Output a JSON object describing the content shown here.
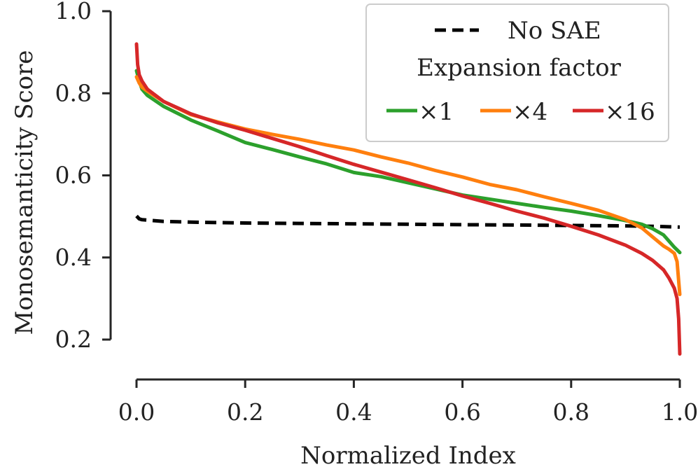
{
  "chart_data": {
    "type": "line",
    "title": "",
    "xlabel": "Normalized Index",
    "ylabel": "Monosemanticity Score",
    "xlim": [
      0.0,
      1.0
    ],
    "ylim": [
      0.2,
      1.0
    ],
    "x_ticks": [
      "0.0",
      "0.2",
      "0.4",
      "0.6",
      "0.8",
      "1.0"
    ],
    "y_ticks": [
      "0.2",
      "0.4",
      "0.6",
      "0.8",
      "1.0"
    ],
    "grid": false,
    "legend": {
      "placement": "top-right",
      "baseline_label": "No SAE",
      "subtitle": "Expansion factor"
    },
    "series": [
      {
        "name": "No SAE",
        "legend_label": "No SAE",
        "color": "#000000",
        "style": "dashed",
        "x": [
          0.0,
          0.005,
          0.01,
          0.05,
          0.1,
          0.2,
          0.3,
          0.4,
          0.5,
          0.6,
          0.7,
          0.8,
          0.9,
          0.95,
          1.0
        ],
        "y": [
          0.501,
          0.494,
          0.492,
          0.488,
          0.486,
          0.484,
          0.483,
          0.482,
          0.481,
          0.48,
          0.479,
          0.478,
          0.477,
          0.476,
          0.474
        ]
      },
      {
        "name": "×1",
        "legend_label": "×1",
        "color": "#2ca02c",
        "style": "solid",
        "x": [
          0.0,
          0.005,
          0.01,
          0.02,
          0.05,
          0.1,
          0.15,
          0.2,
          0.25,
          0.3,
          0.35,
          0.4,
          0.45,
          0.5,
          0.55,
          0.6,
          0.65,
          0.7,
          0.75,
          0.8,
          0.85,
          0.9,
          0.93,
          0.95,
          0.97,
          0.98,
          0.99,
          1.0
        ],
        "y": [
          0.855,
          0.83,
          0.81,
          0.795,
          0.768,
          0.735,
          0.708,
          0.68,
          0.663,
          0.645,
          0.628,
          0.607,
          0.597,
          0.582,
          0.567,
          0.552,
          0.542,
          0.532,
          0.522,
          0.513,
          0.502,
          0.49,
          0.481,
          0.47,
          0.455,
          0.44,
          0.425,
          0.412
        ]
      },
      {
        "name": "×4",
        "legend_label": "×4",
        "color": "#ff7f0e",
        "style": "solid",
        "x": [
          0.0,
          0.005,
          0.01,
          0.02,
          0.05,
          0.1,
          0.15,
          0.2,
          0.25,
          0.3,
          0.35,
          0.4,
          0.45,
          0.5,
          0.55,
          0.6,
          0.65,
          0.7,
          0.75,
          0.8,
          0.85,
          0.9,
          0.93,
          0.95,
          0.97,
          0.98,
          0.99,
          0.995,
          1.0
        ],
        "y": [
          0.84,
          0.825,
          0.815,
          0.805,
          0.78,
          0.748,
          0.73,
          0.713,
          0.7,
          0.688,
          0.674,
          0.662,
          0.645,
          0.63,
          0.612,
          0.596,
          0.578,
          0.565,
          0.548,
          0.532,
          0.515,
          0.492,
          0.472,
          0.45,
          0.428,
          0.42,
          0.41,
          0.39,
          0.31
        ]
      },
      {
        "name": "×16",
        "legend_label": "×16",
        "color": "#d62728",
        "style": "solid",
        "x": [
          0.0,
          0.002,
          0.005,
          0.01,
          0.02,
          0.05,
          0.1,
          0.15,
          0.2,
          0.25,
          0.3,
          0.35,
          0.4,
          0.45,
          0.5,
          0.55,
          0.6,
          0.65,
          0.7,
          0.75,
          0.8,
          0.85,
          0.9,
          0.93,
          0.95,
          0.97,
          0.98,
          0.99,
          0.995,
          0.998,
          1.0
        ],
        "y": [
          0.92,
          0.87,
          0.845,
          0.83,
          0.81,
          0.78,
          0.75,
          0.728,
          0.71,
          0.69,
          0.67,
          0.648,
          0.627,
          0.608,
          0.589,
          0.57,
          0.55,
          0.532,
          0.513,
          0.496,
          0.476,
          0.455,
          0.43,
          0.41,
          0.393,
          0.37,
          0.35,
          0.325,
          0.3,
          0.25,
          0.165
        ]
      }
    ]
  }
}
